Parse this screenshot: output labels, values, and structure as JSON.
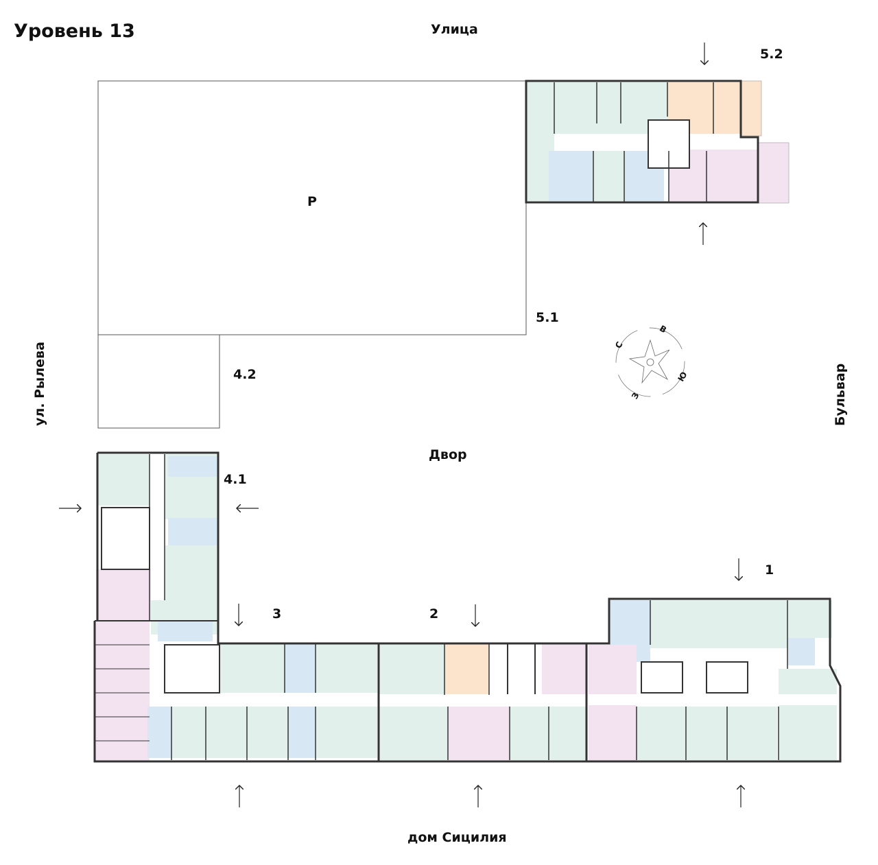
{
  "title": "Уровень 13",
  "streets": {
    "top": "Улица",
    "left": "ул. Рылева",
    "right": "Бульвар",
    "bottom": "дом Сицилия",
    "courtyard": "Двор"
  },
  "parking_label": "Р",
  "sections": [
    "5.2",
    "5.1",
    "4.2",
    "4.1",
    "3",
    "2",
    "1"
  ],
  "compass": {
    "north": "С",
    "east": "В",
    "south": "Ю",
    "west": "З"
  },
  "colors": {
    "one_room": "#fbe3cc",
    "studio": "#d7e7f3",
    "two_room": "#e2f0eb",
    "three_room": "#f3e3f0",
    "wall": "#333333"
  }
}
